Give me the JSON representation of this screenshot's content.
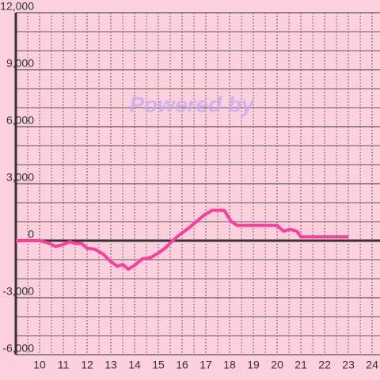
{
  "chart_data": {
    "type": "line",
    "watermark": "Powered by",
    "x": [
      9,
      10,
      10.33,
      10.67,
      11,
      11.27,
      11.5,
      11.77,
      12,
      12.33,
      12.67,
      13,
      13.27,
      13.5,
      13.73,
      14,
      14.33,
      14.67,
      15,
      15.33,
      15.6,
      15.93,
      16.27,
      16.6,
      16.93,
      17.27,
      17.77,
      18.07,
      18.33,
      20,
      20.27,
      20.53,
      20.83,
      21,
      23
    ],
    "series": [
      {
        "color": "#ff3d9a",
        "values": [
          0,
          0,
          -100,
          -300,
          -200,
          -50,
          -150,
          -150,
          -400,
          -450,
          -700,
          -1100,
          -1350,
          -1250,
          -1500,
          -1300,
          -950,
          -900,
          -650,
          -350,
          0,
          350,
          650,
          1000,
          1350,
          1600,
          1600,
          1000,
          800,
          800,
          500,
          600,
          500,
          200,
          200
        ]
      }
    ],
    "xlim": [
      9,
      24.33
    ],
    "xticks": [
      10,
      11,
      12,
      13,
      14,
      15,
      16,
      17,
      18,
      19,
      20,
      21,
      22,
      23,
      24
    ],
    "x_minor_step": 0.5,
    "ylim": [
      -6000,
      12000
    ],
    "yticks": [
      {
        "value": 12000,
        "label": "12,000"
      },
      {
        "value": 9000,
        "label": "9,000"
      },
      {
        "value": 6000,
        "label": "6,000"
      },
      {
        "value": 3000,
        "label": "3,000"
      },
      0,
      {
        "value": -3000,
        "label": "-3,000"
      },
      {
        "value": -6000,
        "label": "-6,000"
      }
    ],
    "y_grid_step": 1000,
    "grid": true
  }
}
